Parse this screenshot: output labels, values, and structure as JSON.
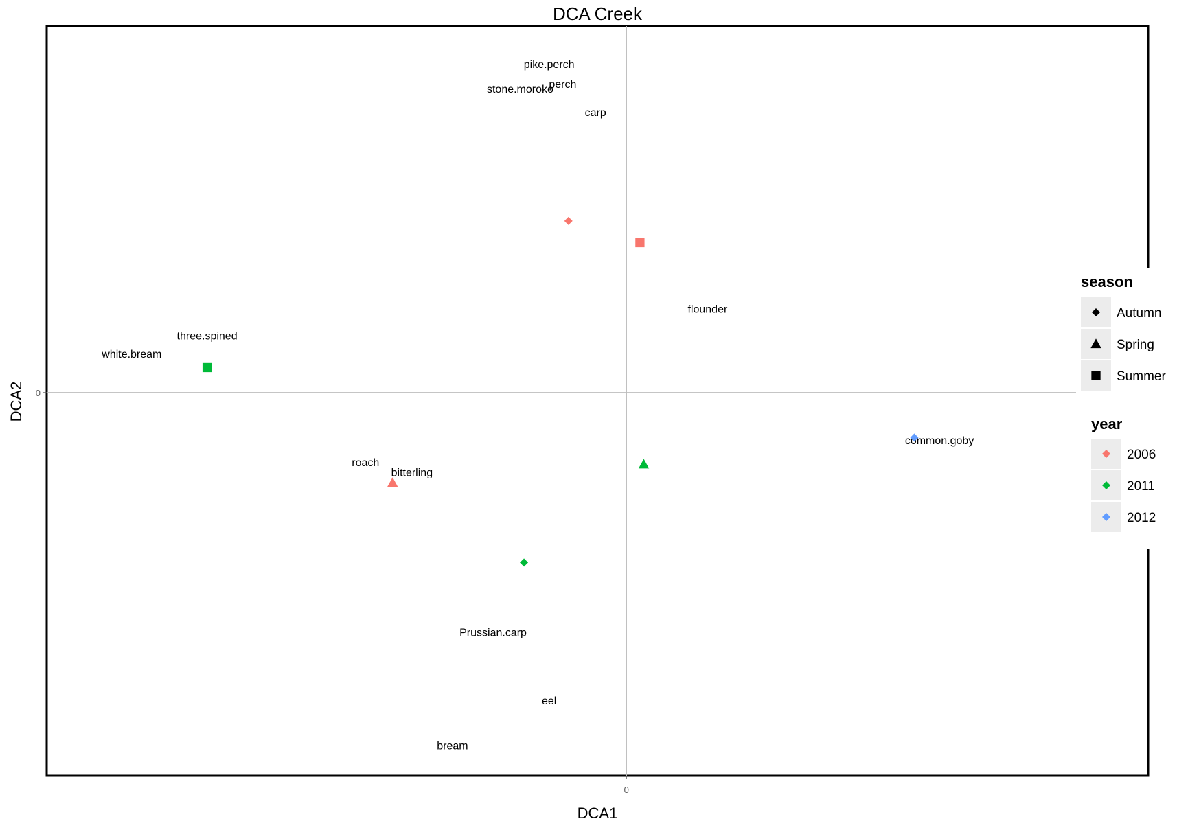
{
  "chart_data": {
    "type": "scatter",
    "title": "DCA Creek",
    "xlabel": "DCA1",
    "ylabel": "DCA2",
    "x_ticks": [
      {
        "value": 0,
        "label": "0"
      }
    ],
    "y_ticks": [
      {
        "value": 0,
        "label": "0"
      }
    ],
    "xlim": [
      -3.0,
      2.7
    ],
    "ylim": [
      -2.3,
      2.2
    ],
    "grid": false,
    "reference_lines": {
      "x": 0,
      "y": 0
    },
    "colors": {
      "2006": "#F8766D",
      "2011": "#00BA38",
      "2012": "#619CFF"
    },
    "points": [
      {
        "x": -0.3,
        "y": 1.03,
        "season": "Autumn",
        "year": "2006"
      },
      {
        "x": 0.07,
        "y": 0.9,
        "season": "Summer",
        "year": "2006"
      },
      {
        "x": -2.17,
        "y": 0.15,
        "season": "Summer",
        "year": "2011"
      },
      {
        "x": -1.21,
        "y": -0.54,
        "season": "Spring",
        "year": "2006"
      },
      {
        "x": 0.09,
        "y": -0.43,
        "season": "Spring",
        "year": "2011"
      },
      {
        "x": -0.53,
        "y": -1.02,
        "season": "Autumn",
        "year": "2011"
      },
      {
        "x": 1.49,
        "y": -0.27,
        "season": "Autumn",
        "year": "2012"
      }
    ],
    "species": [
      {
        "label": "pike.perch",
        "x": -0.4,
        "y": 1.97
      },
      {
        "label": "perch",
        "x": -0.33,
        "y": 1.85
      },
      {
        "label": "stone.moroko",
        "x": -0.55,
        "y": 1.82
      },
      {
        "label": "carp",
        "x": -0.16,
        "y": 1.68
      },
      {
        "label": "flounder",
        "x": 0.42,
        "y": 0.5
      },
      {
        "label": "three.spined",
        "x": -2.17,
        "y": 0.34
      },
      {
        "label": "white.bream",
        "x": -2.56,
        "y": 0.23
      },
      {
        "label": "common.goby",
        "x": 1.62,
        "y": -0.29
      },
      {
        "label": "roach",
        "x": -1.35,
        "y": -0.42
      },
      {
        "label": "bitterling",
        "x": -1.11,
        "y": -0.48
      },
      {
        "label": "Prussian.carp",
        "x": -0.69,
        "y": -1.44
      },
      {
        "label": "eel",
        "x": -0.4,
        "y": -1.85
      },
      {
        "label": "bream",
        "x": -0.9,
        "y": -2.12
      }
    ],
    "legend": {
      "placement": "right",
      "season": {
        "title": "season",
        "items": [
          "Autumn",
          "Spring",
          "Summer"
        ]
      },
      "year": {
        "title": "year",
        "items": [
          "2006",
          "2011",
          "2012"
        ]
      }
    }
  }
}
